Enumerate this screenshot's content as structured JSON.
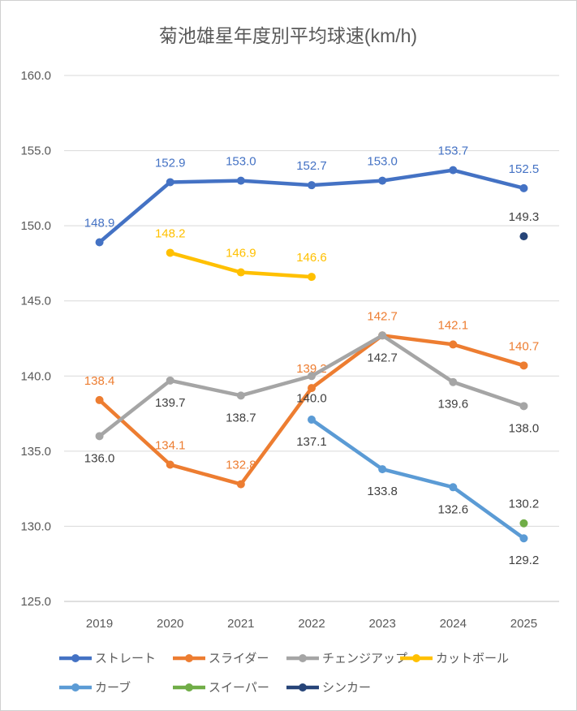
{
  "chart_data": {
    "type": "line",
    "title": "菊池雄星年度別平均球速(km/h)",
    "categories": [
      "2019",
      "2020",
      "2021",
      "2022",
      "2023",
      "2024",
      "2025"
    ],
    "ylim": [
      125,
      160
    ],
    "yticks": [
      "125.0",
      "130.0",
      "135.0",
      "140.0",
      "145.0",
      "150.0",
      "155.0",
      "160.0"
    ],
    "grid": true,
    "legend_position": "bottom",
    "series": [
      {
        "name": "ストレート",
        "color": "#4472C4",
        "label_color": "#4472C4",
        "values": [
          148.9,
          152.9,
          153.0,
          152.7,
          153.0,
          153.7,
          152.5
        ],
        "labels": [
          "148.9",
          "152.9",
          "153.0",
          "152.7",
          "153.0",
          "153.7",
          "152.5"
        ],
        "label_pos": [
          "above",
          "above",
          "above",
          "above",
          "above",
          "above",
          "above"
        ]
      },
      {
        "name": "スライダー",
        "color": "#ED7D31",
        "label_color": "#ED7D31",
        "values": [
          138.4,
          134.1,
          132.8,
          139.2,
          142.7,
          142.1,
          140.7
        ],
        "labels": [
          "138.4",
          "134.1",
          "132.8",
          "139.2",
          "142.7",
          "142.1",
          "140.7"
        ],
        "label_pos": [
          "above",
          "above",
          "above",
          "above",
          "above",
          "above",
          "above"
        ]
      },
      {
        "name": "チェンジアップ",
        "color": "#A5A5A5",
        "label_color": "#404040",
        "values": [
          136.0,
          139.7,
          138.7,
          140.0,
          142.7,
          139.6,
          138.0
        ],
        "labels": [
          "136.0",
          "139.7",
          "138.7",
          "140.0",
          "142.7",
          "139.6",
          "138.0"
        ],
        "label_pos": [
          "below",
          "below",
          "below",
          "below",
          "below",
          "below",
          "below"
        ]
      },
      {
        "name": "カットボール",
        "color": "#FFC000",
        "label_color": "#FFC000",
        "values": [
          null,
          148.2,
          146.9,
          146.6,
          null,
          null,
          null
        ],
        "labels": [
          null,
          "148.2",
          "146.9",
          "146.6",
          null,
          null,
          null
        ],
        "label_pos": [
          "above",
          "above",
          "above",
          "above",
          "above",
          "above",
          "above"
        ]
      },
      {
        "name": "カーブ",
        "color": "#5B9BD5",
        "label_color": "#404040",
        "values": [
          null,
          null,
          null,
          137.1,
          133.8,
          132.6,
          129.2
        ],
        "labels": [
          null,
          null,
          null,
          "137.1",
          "133.8",
          "132.6",
          "129.2"
        ],
        "label_pos": [
          "below",
          "below",
          "below",
          "below",
          "below",
          "below",
          "below"
        ]
      },
      {
        "name": "スイーパー",
        "color": "#70AD47",
        "label_color": "#404040",
        "values": [
          null,
          null,
          null,
          null,
          null,
          null,
          130.2
        ],
        "labels": [
          null,
          null,
          null,
          null,
          null,
          null,
          "130.2"
        ],
        "label_pos": [
          "above",
          "above",
          "above",
          "above",
          "above",
          "above",
          "above"
        ]
      },
      {
        "name": "シンカー",
        "color": "#264478",
        "label_color": "#404040",
        "values": [
          null,
          null,
          null,
          null,
          null,
          null,
          149.3
        ],
        "labels": [
          null,
          null,
          null,
          null,
          null,
          null,
          "149.3"
        ],
        "label_pos": [
          "above",
          "above",
          "above",
          "above",
          "above",
          "above",
          "above"
        ]
      }
    ]
  }
}
